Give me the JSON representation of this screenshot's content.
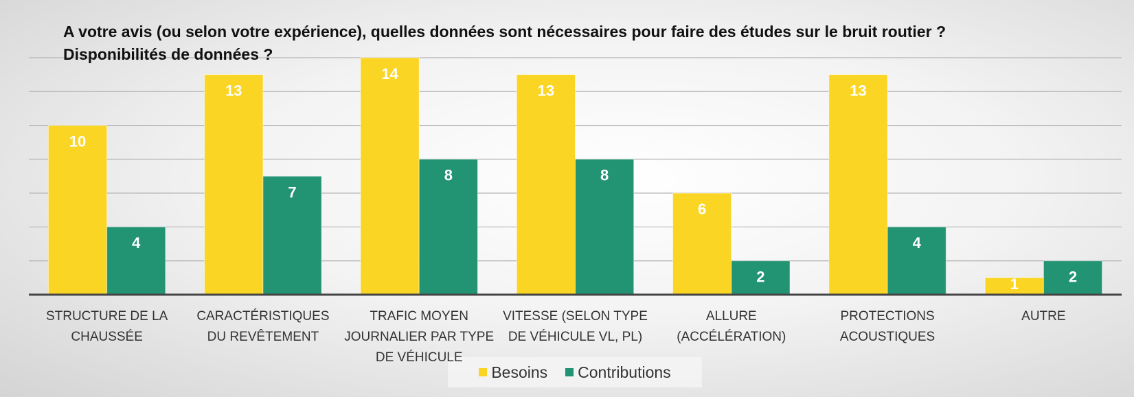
{
  "chart_data": {
    "type": "bar",
    "title": "A votre avis (ou selon votre expérience), quelles données sont nécessaires pour faire des études sur le bruit routier ?",
    "subtitle": "Disponibilités de données ?",
    "categories": [
      "STRUCTURE DE LA CHAUSSÉE",
      "CARACTÉRISTIQUES DU REVÊTEMENT",
      "TRAFIC MOYEN JOURNALIER PAR TYPE DE VÉHICULE",
      "VITESSE (SELON TYPE DE VÉHICULE VL, PL)",
      "ALLURE (ACCÉLÉRATION)",
      "PROTECTIONS ACOUSTIQUES",
      "AUTRE"
    ],
    "series": [
      {
        "name": "Besoins",
        "color": "#fbd524",
        "values": [
          10,
          13,
          14,
          13,
          6,
          13,
          1
        ]
      },
      {
        "name": "Contributions",
        "color": "#229373",
        "values": [
          4,
          7,
          8,
          8,
          2,
          4,
          2
        ]
      }
    ],
    "ylim": [
      0,
      14
    ],
    "yticks": [
      0,
      2,
      4,
      6,
      8,
      10,
      12,
      14
    ],
    "grid": true
  }
}
